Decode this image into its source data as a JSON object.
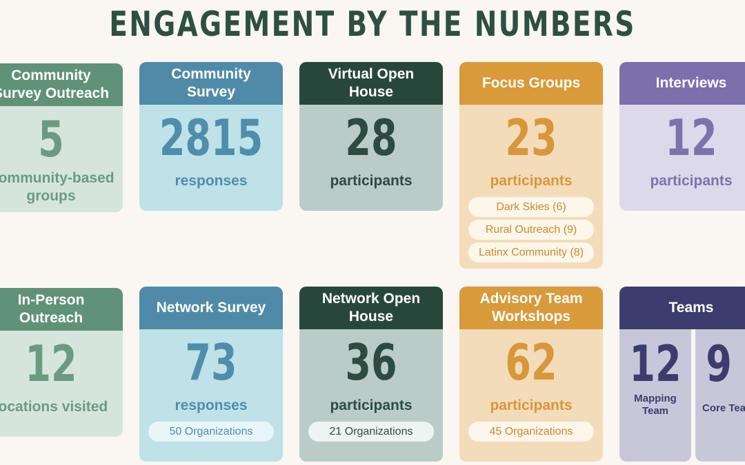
{
  "title": "ENGAGEMENT BY THE NUMBERS",
  "row1": [
    {
      "head": "Community\nSurvey  Outreach",
      "value": "5",
      "unit": "Community-based\ngroups"
    },
    {
      "head": "Community\nSurvey",
      "value": "2815",
      "unit": "responses"
    },
    {
      "head": "Virtual Open\nHouse",
      "value": "28",
      "unit": "participants"
    },
    {
      "head": "Focus Groups",
      "value": "23",
      "unit": "participants",
      "pills": [
        "Dark Skies (6)",
        "Rural Outreach (9)",
        "Latinx Community (8)"
      ]
    },
    {
      "head": "Interviews",
      "value": "12",
      "unit": "participants"
    }
  ],
  "row2": [
    {
      "head": "In-Person\nOutreach",
      "value": "12",
      "unit": "locations visited"
    },
    {
      "head": "Network Survey",
      "value": "73",
      "unit": "responses",
      "pill": "50 Organizations"
    },
    {
      "head": "Network Open\nHouse",
      "value": "36",
      "unit": "participants",
      "pill": "21 Organizations"
    },
    {
      "head": "Advisory Team\nWorkshops",
      "value": "62",
      "unit": "participants",
      "pill": "45 Organizations"
    },
    {
      "head": "Teams",
      "subs": [
        {
          "value": "12",
          "label": "Mapping\nTeam"
        },
        {
          "value": "9",
          "label": "Core Team"
        }
      ]
    }
  ]
}
